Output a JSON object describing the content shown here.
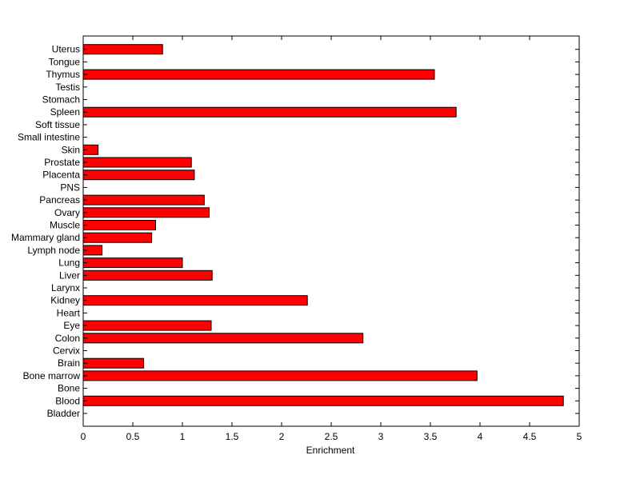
{
  "chart_data": {
    "type": "bar",
    "orientation": "horizontal",
    "xlabel": "Enrichment",
    "ylabel": "",
    "xlim": [
      0,
      5
    ],
    "x_ticks": [
      0,
      0.5,
      1,
      1.5,
      2,
      2.5,
      3,
      3.5,
      4,
      4.5,
      5
    ],
    "x_tick_labels": [
      "0",
      "0.5",
      "1",
      "1.5",
      "2",
      "2.5",
      "3",
      "3.5",
      "4",
      "4.5",
      "5"
    ],
    "grid": false,
    "legend": "none",
    "bar_color": "#ff0000",
    "bar_edge_color": "#000000",
    "categories": [
      "Bladder",
      "Blood",
      "Bone",
      "Bone marrow",
      "Brain",
      "Cervix",
      "Colon",
      "Eye",
      "Heart",
      "Kidney",
      "Larynx",
      "Liver",
      "Lung",
      "Lymph node",
      "Mammary gland",
      "Muscle",
      "Ovary",
      "Pancreas",
      "PNS",
      "Placenta",
      "Prostate",
      "Skin",
      "Small intestine",
      "Soft tissue",
      "Spleen",
      "Stomach",
      "Testis",
      "Thymus",
      "Tongue",
      "Uterus"
    ],
    "values": [
      0,
      4.84,
      0,
      3.97,
      0.61,
      0,
      2.82,
      1.29,
      0,
      2.26,
      0,
      1.3,
      1.0,
      0.19,
      0.69,
      0.73,
      1.27,
      1.22,
      0,
      1.12,
      1.09,
      0.15,
      0,
      0,
      3.76,
      0,
      0,
      3.54,
      0,
      0.8
    ]
  }
}
